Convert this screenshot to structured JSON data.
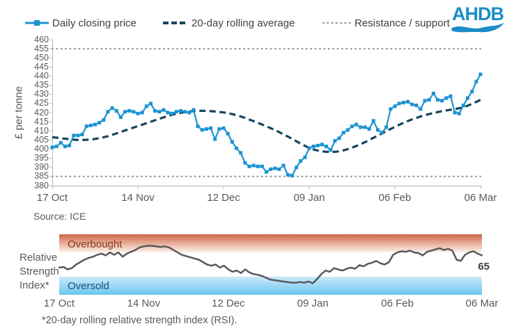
{
  "logo_text": "AHDB",
  "legend": [
    {
      "label": "Daily closing price",
      "marker": "solid-line-square-marker",
      "color": "#1b93d2"
    },
    {
      "label": "20-day rolling average",
      "marker": "dashed-line",
      "color": "#14455c"
    },
    {
      "label": "Resistance / support",
      "marker": "dotted-line",
      "color": "#98a4ac"
    }
  ],
  "source_text": "Source: ICE",
  "rsi_axis_label_lines": [
    "Relative",
    "Strength",
    "Index*"
  ],
  "rsi_overbought_label": "Overbought",
  "rsi_oversold_label": "Oversold",
  "rsi_end_value": "65",
  "footnote": "*20-day rolling relative strength index (RSI).",
  "colors": {
    "price_line": "#1b93d2",
    "avg_line": "#14455c",
    "support_resistance": "#98a4ac",
    "axis": "#bfbfbf",
    "tick_text": "#595959",
    "rsi_line": "#58595b",
    "overbought_top": "#ce6947",
    "overbought_bottom": "#fdf2ec",
    "overbought_text": "#8d3a22",
    "oversold_top": "#cdeafa",
    "oversold_bottom": "#6ac6f0",
    "oversold_text": "#1c4d7c",
    "logo_blue": "#1d8dc8"
  },
  "chart_data": [
    {
      "type": "line",
      "title": "",
      "ylabel": "£ per tonne",
      "xlabel": "",
      "ylim": [
        380,
        460
      ],
      "ytick_step": 5,
      "xticklabels": [
        "17 Oct",
        "14 Nov",
        "12 Dec",
        "09 Jan",
        "06 Feb",
        "06 Mar"
      ],
      "grid": false,
      "legend_position": "top",
      "resistance": 455,
      "support": 385,
      "series": [
        {
          "name": "Daily closing price",
          "values": [
            401,
            401.5,
            403.5,
            401.5,
            402,
            407.5,
            407.5,
            408,
            412.5,
            413,
            413.5,
            414.5,
            416,
            420.5,
            422.5,
            421,
            417.5,
            420.5,
            421,
            420.5,
            419.5,
            420,
            423.5,
            425,
            421,
            420.5,
            421.5,
            420,
            419.5,
            420.5,
            421,
            420.5,
            420,
            421.5,
            412.5,
            410.5,
            411,
            411.5,
            405.5,
            411,
            411.5,
            408.5,
            404,
            400.5,
            398,
            392.5,
            390.5,
            391,
            390.5,
            390.5,
            387.5,
            389,
            389.5,
            389,
            391,
            386,
            385.5,
            390,
            393.5,
            395.5,
            400.5,
            401.5,
            402,
            402.5,
            401.5,
            399.5,
            404.5,
            406,
            409,
            410.5,
            412.5,
            413.5,
            412,
            412,
            411,
            415.5,
            410.5,
            409,
            412,
            422,
            423.5,
            425,
            425.5,
            426,
            424.5,
            424,
            422,
            426.5,
            427,
            430.5,
            427,
            426.5,
            428,
            429,
            420,
            419.5,
            424,
            428,
            431.5,
            437,
            441
          ]
        },
        {
          "name": "20-day rolling average",
          "values": [
            406.5,
            406.3,
            406,
            405.7,
            405.4,
            405.2,
            405,
            405,
            405.1,
            405.3,
            405.6,
            406,
            406.5,
            407.1,
            407.8,
            408.6,
            409.4,
            410.2,
            411,
            411.8,
            412.6,
            413.4,
            414.2,
            415,
            415.8,
            416.6,
            417.4,
            418.1,
            418.8,
            419.4,
            419.9,
            420.3,
            420.6,
            420.8,
            421,
            421,
            420.9,
            420.8,
            420.6,
            420.4,
            420.1,
            419.7,
            419.2,
            418.6,
            417.9,
            417.1,
            416.2,
            415.3,
            414.4,
            413.5,
            412.5,
            411.5,
            410.4,
            409.3,
            408.1,
            406.9,
            405.6,
            404.3,
            403,
            401.8,
            400.7,
            399.8,
            399.2,
            398.8,
            398.5,
            398.4,
            398.5,
            398.8,
            399.3,
            400,
            400.8,
            401.7,
            402.7,
            403.8,
            405,
            406.2,
            407.4,
            408.6,
            409.8,
            411,
            412.2,
            413.3,
            414.4,
            415.4,
            416.3,
            417.1,
            417.9,
            418.6,
            419.2,
            419.8,
            420.3,
            420.8,
            421.2,
            421.6,
            422,
            422.4,
            423,
            423.8,
            424.8,
            425.9,
            427
          ]
        }
      ],
      "annotations": {
        "source": "Source: ICE"
      }
    },
    {
      "type": "line",
      "title": "Relative Strength Index*",
      "ylim": [
        0,
        100
      ],
      "overbought_band": [
        70,
        100
      ],
      "oversold_band": [
        0,
        30
      ],
      "xticklabels": [
        "17 Oct",
        "14 Nov",
        "12 Dec",
        "09 Jan",
        "06 Feb",
        "06 Mar"
      ],
      "end_label": 65,
      "series": [
        {
          "name": "20-day rolling RSI",
          "values": [
            45,
            46,
            42,
            44,
            50,
            54,
            58,
            61,
            63,
            66,
            68,
            65,
            70,
            66,
            70,
            63,
            68,
            71,
            74,
            78,
            80,
            81,
            81,
            80,
            79,
            80,
            78,
            74,
            70,
            66,
            64,
            62,
            60,
            58,
            54,
            50,
            48,
            50,
            45,
            48,
            42,
            38,
            40,
            36,
            42,
            37,
            34,
            33,
            31,
            28,
            25,
            24,
            23,
            22,
            21,
            20,
            20,
            21,
            20,
            22,
            19,
            26,
            34,
            40,
            38,
            44,
            42,
            40,
            43,
            45,
            43,
            49,
            47,
            51,
            53,
            56,
            52,
            50,
            54,
            66,
            70,
            72,
            71,
            73,
            70,
            69,
            65,
            71,
            73,
            75,
            77,
            74,
            76,
            73,
            58,
            56,
            66,
            70,
            72,
            68,
            65
          ]
        }
      ],
      "footnote": "*20-day rolling relative strength index (RSI)."
    }
  ]
}
